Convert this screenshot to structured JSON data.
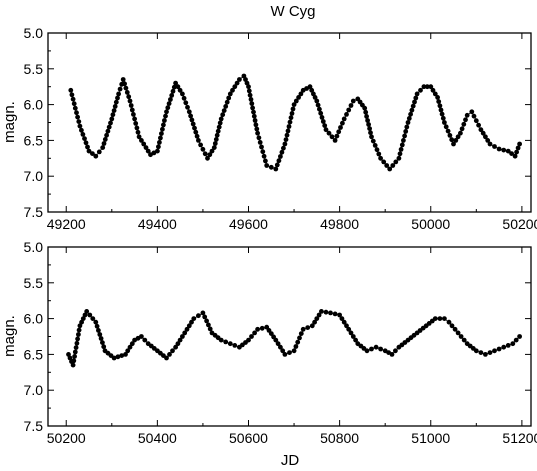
{
  "chart_data": [
    {
      "type": "scatter",
      "title": "W Cyg",
      "xlabel": "",
      "ylabel": "magn.",
      "xlim": [
        49160,
        50220
      ],
      "ylim": [
        5.0,
        7.5
      ],
      "y_inverted": true,
      "x_ticks": [
        "49200",
        "49400",
        "49600",
        "49800",
        "50000",
        "50200"
      ],
      "y_ticks": [
        "5.0",
        "5.5",
        "6.0",
        "6.5",
        "7.0",
        "7.5"
      ],
      "grid": false,
      "connected": true,
      "series": [
        {
          "x": [
            49210,
            49230,
            49250,
            49265,
            49280,
            49300,
            49315,
            49325,
            49340,
            49360,
            49385,
            49400,
            49420,
            49440,
            49455,
            49470,
            49490,
            49510,
            49525,
            49540,
            49560,
            49580,
            49590,
            49600,
            49620,
            49640,
            49660,
            49680,
            49700,
            49720,
            49735,
            49750,
            49770,
            49790,
            49810,
            49830,
            49840,
            49855,
            49870,
            49890,
            49910,
            49930,
            49950,
            49970,
            49985,
            50000,
            50015,
            50030,
            50050,
            50065,
            50080,
            50090,
            50110,
            50130,
            50150,
            50170,
            50185,
            50195
          ],
          "y": [
            5.8,
            6.3,
            6.65,
            6.72,
            6.6,
            6.2,
            5.85,
            5.65,
            5.95,
            6.45,
            6.7,
            6.65,
            6.1,
            5.7,
            5.85,
            6.1,
            6.5,
            6.75,
            6.6,
            6.2,
            5.85,
            5.65,
            5.6,
            5.75,
            6.4,
            6.85,
            6.9,
            6.55,
            6.0,
            5.8,
            5.75,
            5.95,
            6.35,
            6.5,
            6.2,
            5.95,
            5.92,
            6.05,
            6.45,
            6.75,
            6.9,
            6.75,
            6.25,
            5.85,
            5.75,
            5.75,
            5.9,
            6.25,
            6.55,
            6.4,
            6.15,
            6.1,
            6.35,
            6.55,
            6.62,
            6.65,
            6.72,
            6.55
          ]
        }
      ]
    },
    {
      "type": "scatter",
      "title": "",
      "xlabel": "JD",
      "ylabel": "magn.",
      "xlim": [
        50160,
        51220
      ],
      "ylim": [
        5.0,
        7.5
      ],
      "y_inverted": true,
      "x_ticks": [
        "50200",
        "50400",
        "50600",
        "50800",
        "51000",
        "51200"
      ],
      "y_ticks": [
        "5.0",
        "5.5",
        "6.0",
        "6.5",
        "7.0",
        "7.5"
      ],
      "grid": false,
      "connected": true,
      "series": [
        {
          "x": [
            50205,
            50215,
            50230,
            50245,
            50265,
            50285,
            50305,
            50330,
            50350,
            50365,
            50380,
            50400,
            50420,
            50440,
            50460,
            50480,
            50500,
            50520,
            50540,
            50560,
            50580,
            50600,
            50620,
            50640,
            50660,
            50680,
            50700,
            50720,
            50740,
            50760,
            50780,
            50800,
            50820,
            50840,
            50860,
            50880,
            50900,
            50915,
            50930,
            50950,
            50970,
            50990,
            51010,
            51030,
            51040,
            51060,
            51080,
            51100,
            51120,
            51140,
            51160,
            51180,
            51195
          ],
          "y": [
            6.5,
            6.65,
            6.1,
            5.9,
            6.05,
            6.45,
            6.55,
            6.5,
            6.3,
            6.25,
            6.35,
            6.45,
            6.55,
            6.4,
            6.2,
            6.0,
            5.92,
            6.2,
            6.3,
            6.35,
            6.4,
            6.3,
            6.15,
            6.12,
            6.3,
            6.5,
            6.45,
            6.15,
            6.1,
            5.9,
            5.92,
            5.95,
            6.15,
            6.35,
            6.45,
            6.4,
            6.45,
            6.5,
            6.4,
            6.3,
            6.2,
            6.1,
            6.0,
            6.0,
            6.05,
            6.2,
            6.35,
            6.45,
            6.5,
            6.45,
            6.4,
            6.35,
            6.25
          ]
        }
      ]
    }
  ]
}
